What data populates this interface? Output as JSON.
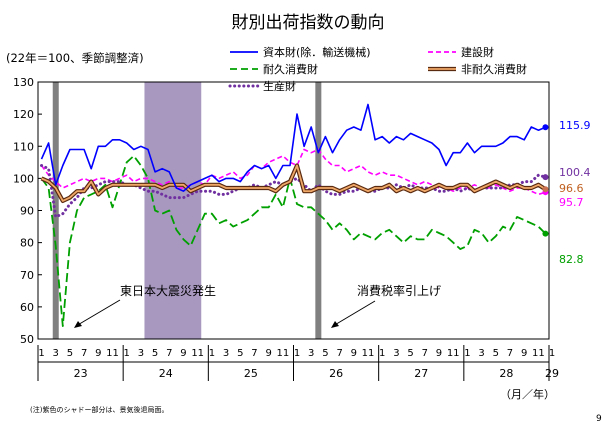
{
  "chart_data": {
    "type": "line",
    "title": "財別出荷指数の動向",
    "subtitle": "(22年＝100、季節調整済)",
    "ylim": [
      50,
      130
    ],
    "y_ticks": [
      "50",
      "60",
      "70",
      "80",
      "90",
      "100",
      "110",
      "120",
      "130"
    ],
    "month_ticks": [
      "1",
      "3",
      "5",
      "7",
      "9",
      "11",
      "1",
      "3",
      "5",
      "7",
      "9",
      "11",
      "1",
      "3",
      "5",
      "7",
      "9",
      "11",
      "1",
      "3",
      "5",
      "7",
      "9",
      "11",
      "1",
      "3",
      "5",
      "7",
      "9",
      "11",
      "1",
      "3",
      "5",
      "7",
      "9",
      "11",
      "1"
    ],
    "year_labels": [
      "23",
      "24",
      "25",
      "26",
      "27",
      "28",
      "29"
    ],
    "x_unit": "（月／年）",
    "shaded_periods": [
      {
        "label": "",
        "start": "23-03",
        "end": "23-03",
        "color": "#808080"
      },
      {
        "label": "",
        "start": "24-04",
        "end": "24-11",
        "color": "#a898c0"
      },
      {
        "label": "",
        "start": "26-04",
        "end": "26-04",
        "color": "#808080"
      }
    ],
    "annotations": [
      {
        "text": "東日本大震災発生"
      },
      {
        "text": "消費税率引上げ"
      }
    ],
    "footnote": "(注)紫色のシャドー部分は、景気後退局面。",
    "page_number": "9",
    "series": [
      {
        "name": "資本財(除．輸送機械)",
        "color": "#0000ff",
        "style": "solid",
        "end_label": "115.9",
        "values": [
          106,
          111,
          98,
          104,
          109,
          109,
          109,
          103,
          110,
          110,
          112,
          112,
          111,
          109,
          110,
          109,
          102,
          103,
          102,
          97,
          96,
          98,
          99,
          100,
          101,
          99,
          100,
          100,
          99,
          102,
          104,
          103,
          104,
          100,
          104,
          104,
          120,
          110,
          116,
          108,
          113,
          108,
          112,
          115,
          116,
          115,
          123,
          112,
          113,
          111,
          113,
          112,
          114,
          113,
          112,
          111,
          109,
          104,
          108,
          108,
          111,
          108,
          110,
          110,
          110,
          111,
          113,
          113,
          112,
          116,
          115,
          115.9
        ]
      },
      {
        "name": "建設財",
        "color": "#ff00ff",
        "style": "dashed",
        "end_label": "95.7",
        "values": [
          104,
          101,
          99,
          97,
          98,
          99,
          100,
          99,
          100,
          100,
          99,
          100,
          101,
          99,
          100,
          100,
          99,
          98,
          99,
          97,
          97,
          98,
          99,
          98,
          101,
          100,
          101,
          102,
          100,
          101,
          104,
          103,
          105,
          106,
          107,
          105,
          104,
          109,
          108,
          109,
          106,
          104,
          104,
          102,
          103,
          104,
          102,
          101,
          102,
          101,
          101,
          100,
          99,
          98,
          99,
          98,
          97,
          97,
          96,
          97,
          97,
          98,
          97,
          97,
          98,
          97,
          96,
          97,
          97,
          96,
          95,
          95.7
        ]
      },
      {
        "name": "耐久消費財",
        "color": "#00a000",
        "style": "dashed-long",
        "end_label": "82.8",
        "values": [
          100,
          97,
          79,
          54,
          80,
          90,
          94,
          95,
          96,
          98,
          91,
          98,
          105,
          107,
          104,
          100,
          90,
          89,
          90,
          84,
          81,
          79,
          84,
          89,
          89,
          86,
          87,
          85,
          86,
          87,
          89,
          91,
          91,
          95,
          91,
          100,
          92,
          91,
          91,
          89,
          87,
          84,
          86,
          84,
          81,
          83,
          82,
          81,
          83,
          84,
          82,
          80,
          82,
          81,
          81,
          84,
          83,
          82,
          80,
          78,
          79,
          84,
          83,
          80,
          82,
          85,
          84,
          88,
          87,
          86,
          85,
          82.8
        ]
      },
      {
        "name": "非耐久消費財",
        "color": "#c87050",
        "style": "double",
        "end_label": "96.6",
        "values": [
          100,
          99,
          97,
          93,
          94,
          96,
          96,
          99,
          95,
          97,
          98,
          98,
          98,
          98,
          98,
          98,
          98,
          97,
          98,
          98,
          98,
          96,
          97,
          98,
          98,
          98,
          97,
          97,
          97,
          97,
          97,
          97,
          97,
          96,
          98,
          99,
          104,
          96,
          96,
          97,
          97,
          97,
          96,
          97,
          98,
          97,
          96,
          97,
          97,
          98,
          96,
          97,
          96,
          97,
          96,
          97,
          98,
          97,
          97,
          98,
          98,
          96,
          97,
          98,
          99,
          98,
          97,
          98,
          97,
          97,
          98,
          96.6
        ]
      },
      {
        "name": "生産財",
        "color": "#7030a0",
        "style": "dotted",
        "end_label": "100.4",
        "values": [
          104,
          103,
          88,
          89,
          92,
          94,
          97,
          97,
          98,
          99,
          99,
          99,
          98,
          98,
          97,
          96,
          96,
          95,
          94,
          94,
          94,
          95,
          96,
          96,
          96,
          95,
          95,
          96,
          97,
          97,
          98,
          97,
          98,
          99,
          98,
          99,
          100,
          98,
          96,
          98,
          96,
          95,
          95,
          96,
          96,
          97,
          96,
          96,
          97,
          97,
          98,
          97,
          98,
          97,
          97,
          97,
          96,
          96,
          97,
          96,
          97,
          96,
          97,
          97,
          97,
          97,
          98,
          98,
          99,
          99,
          101,
          100.4
        ]
      }
    ]
  }
}
